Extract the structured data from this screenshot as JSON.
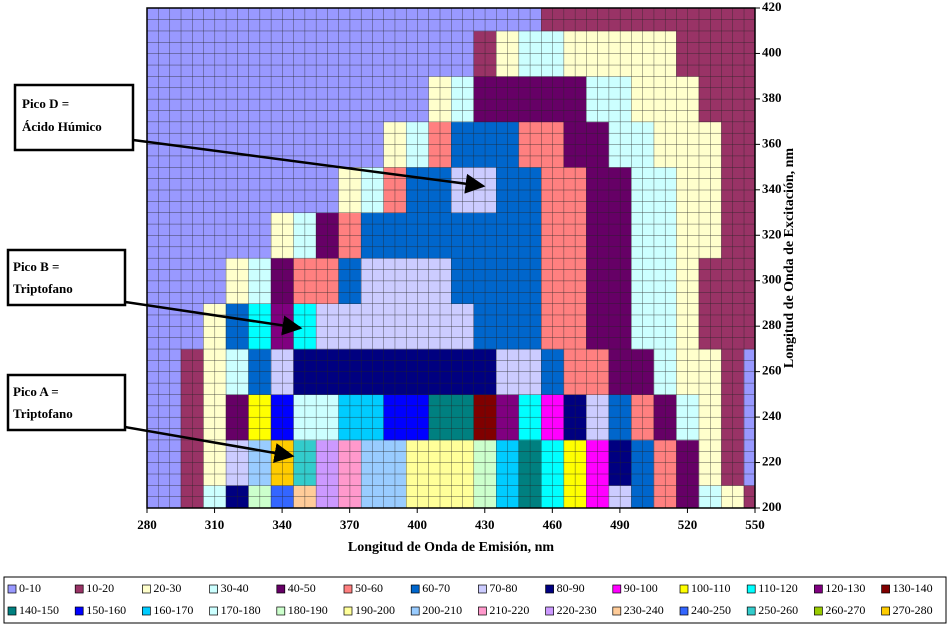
{
  "chart_data": {
    "type": "contour",
    "xlabel": "Longitud de Onda de Emisión, nm",
    "ylabel": "Longitud de Onda de Excitación, nm",
    "xlim": [
      280,
      550
    ],
    "xticks": [
      280,
      310,
      340,
      370,
      400,
      430,
      460,
      490,
      520,
      550
    ],
    "ylim": [
      200,
      420
    ],
    "yticks": [
      200,
      220,
      240,
      260,
      280,
      300,
      320,
      340,
      360,
      380,
      400,
      420
    ],
    "annotations": [
      [
        "Pico D =",
        "Ácido Húmico"
      ],
      [
        "Pico B =",
        "Triptofano"
      ],
      [
        "Pico A =",
        "Triptofano"
      ]
    ],
    "levels": [
      0,
      10,
      20,
      30,
      40,
      50,
      60,
      70,
      80,
      90,
      100,
      110,
      120,
      130,
      140,
      150,
      160,
      170,
      180,
      190,
      200,
      210,
      220,
      230,
      240,
      250,
      260,
      270,
      280
    ],
    "bands": [
      {
        "name": "0-10",
        "color": "#9999ff"
      },
      {
        "name": "10-20",
        "color": "#993366"
      },
      {
        "name": "20-30",
        "color": "#ffffcc"
      },
      {
        "name": "30-40",
        "color": "#ccffff"
      },
      {
        "name": "40-50",
        "color": "#660066"
      },
      {
        "name": "50-60",
        "color": "#ff8080"
      },
      {
        "name": "60-70",
        "color": "#0066cc"
      },
      {
        "name": "70-80",
        "color": "#ccccff"
      },
      {
        "name": "80-90",
        "color": "#000080"
      },
      {
        "name": "90-100",
        "color": "#ff00ff"
      },
      {
        "name": "100-110",
        "color": "#ffff00"
      },
      {
        "name": "110-120",
        "color": "#00ffff"
      },
      {
        "name": "120-130",
        "color": "#800080"
      },
      {
        "name": "130-140",
        "color": "#800000"
      },
      {
        "name": "140-150",
        "color": "#008080"
      },
      {
        "name": "150-160",
        "color": "#0000ff"
      },
      {
        "name": "160-170",
        "color": "#00ccff"
      },
      {
        "name": "170-180",
        "color": "#ccffff"
      },
      {
        "name": "180-190",
        "color": "#ccffcc"
      },
      {
        "name": "190-200",
        "color": "#ffff99"
      },
      {
        "name": "200-210",
        "color": "#99ccff"
      },
      {
        "name": "210-220",
        "color": "#ff99cc"
      },
      {
        "name": "220-230",
        "color": "#cc99ff"
      },
      {
        "name": "230-240",
        "color": "#ffcc99"
      },
      {
        "name": "240-250",
        "color": "#3366ff"
      },
      {
        "name": "250-260",
        "color": "#33cccc"
      },
      {
        "name": "260-270",
        "color": "#99cc00"
      },
      {
        "name": "270-280",
        "color": "#ffcc00"
      }
    ],
    "x": [
      280,
      290,
      300,
      310,
      320,
      330,
      340,
      350,
      360,
      370,
      380,
      390,
      400,
      410,
      420,
      430,
      440,
      450,
      460,
      470,
      480,
      490,
      500,
      510,
      520,
      530,
      540,
      550
    ],
    "y": [
      200,
      220,
      240,
      260,
      280,
      300,
      320,
      340,
      360,
      380,
      400,
      420
    ],
    "z": [
      [
        5,
        5,
        15,
        30,
        80,
        180,
        240,
        230,
        220,
        215,
        205,
        200,
        195,
        195,
        190,
        180,
        160,
        140,
        110,
        100,
        90,
        75,
        60,
        50,
        40,
        30,
        20,
        10
      ],
      [
        5,
        5,
        10,
        25,
        70,
        200,
        275,
        250,
        225,
        215,
        205,
        200,
        195,
        195,
        190,
        180,
        160,
        140,
        110,
        100,
        90,
        80,
        60,
        50,
        40,
        25,
        15,
        5
      ],
      [
        5,
        5,
        10,
        20,
        45,
        100,
        150,
        170,
        170,
        165,
        160,
        155,
        150,
        145,
        140,
        130,
        120,
        110,
        95,
        85,
        75,
        65,
        55,
        45,
        35,
        25,
        15,
        5
      ],
      [
        5,
        5,
        10,
        20,
        35,
        60,
        75,
        80,
        80,
        80,
        85,
        88,
        85,
        85,
        85,
        80,
        75,
        70,
        60,
        55,
        50,
        45,
        40,
        35,
        25,
        20,
        15,
        5
      ],
      [
        5,
        5,
        5,
        25,
        60,
        110,
        125,
        110,
        75,
        70,
        75,
        75,
        72,
        70,
        70,
        68,
        65,
        60,
        55,
        50,
        45,
        40,
        35,
        30,
        25,
        15,
        15,
        10
      ],
      [
        5,
        5,
        5,
        5,
        20,
        35,
        45,
        50,
        55,
        65,
        75,
        75,
        72,
        70,
        68,
        65,
        65,
        60,
        55,
        50,
        45,
        40,
        35,
        30,
        25,
        15,
        15,
        10
      ],
      [
        5,
        5,
        5,
        5,
        5,
        5,
        20,
        30,
        40,
        50,
        60,
        65,
        65,
        65,
        68,
        68,
        65,
        60,
        55,
        50,
        45,
        40,
        35,
        30,
        25,
        20,
        15,
        15
      ],
      [
        5,
        5,
        5,
        5,
        5,
        5,
        5,
        5,
        5,
        20,
        35,
        50,
        60,
        65,
        70,
        75,
        65,
        60,
        55,
        50,
        45,
        40,
        35,
        30,
        25,
        20,
        15,
        15
      ],
      [
        5,
        5,
        5,
        5,
        5,
        5,
        5,
        5,
        5,
        5,
        5,
        20,
        35,
        50,
        60,
        65,
        62,
        55,
        50,
        45,
        40,
        35,
        30,
        25,
        22,
        20,
        15,
        15
      ],
      [
        5,
        5,
        5,
        5,
        5,
        5,
        5,
        5,
        5,
        5,
        5,
        5,
        5,
        25,
        35,
        42,
        45,
        45,
        42,
        40,
        35,
        30,
        25,
        22,
        20,
        15,
        15,
        15
      ],
      [
        5,
        5,
        5,
        5,
        5,
        5,
        5,
        5,
        5,
        5,
        5,
        5,
        5,
        5,
        5,
        15,
        25,
        30,
        30,
        28,
        25,
        22,
        20,
        20,
        15,
        15,
        15,
        15
      ],
      [
        5,
        5,
        5,
        5,
        5,
        5,
        5,
        5,
        5,
        5,
        5,
        5,
        5,
        5,
        5,
        5,
        5,
        5,
        15,
        15,
        15,
        15,
        15,
        15,
        15,
        15,
        15,
        15
      ]
    ]
  }
}
